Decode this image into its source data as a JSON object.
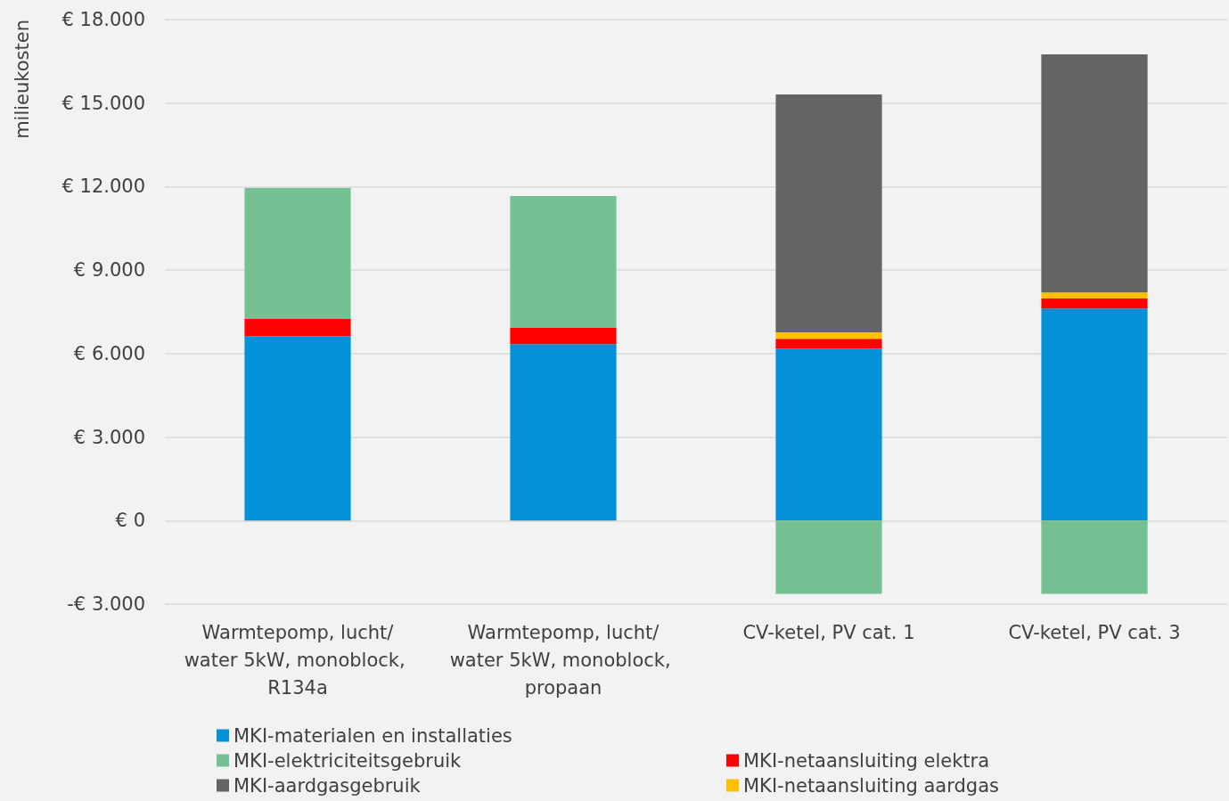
{
  "chart_data": {
    "type": "bar",
    "stacked": true,
    "ylabel": "milieukosten",
    "categories": [
      "Warmtepomp, lucht/water 5kW, monoblock, R134a",
      "Warmtepomp, lucht/water 5kW, monoblock, propaan",
      "CV-ketel, PV cat. 1",
      "CV-ketel, PV cat. 3"
    ],
    "series": [
      {
        "name": "MKI-materialen en installaties",
        "color": "#0391d7",
        "values": [
          6630,
          6340,
          6180,
          7620
        ]
      },
      {
        "name": "MKI-netaansluiting elektra",
        "color": "#ff0000",
        "values": [
          610,
          580,
          350,
          360
        ]
      },
      {
        "name": "MKI-elektriciteitsgebruik",
        "color": "#75c193",
        "values": [
          4710,
          4740,
          -2630,
          -2630
        ]
      },
      {
        "name": "MKI-netaansluiting aardgas",
        "color": "#ffc000",
        "values": [
          null,
          null,
          230,
          220
        ]
      },
      {
        "name": "MKI-aardgasgebruik",
        "color": "#646464",
        "values": [
          null,
          null,
          8550,
          8550
        ]
      }
    ],
    "ylim": [
      -3000,
      18000
    ],
    "yticks": [
      {
        "value": -3000,
        "label": "-€ 3.000"
      },
      {
        "value": 0,
        "label": "€ 0"
      },
      {
        "value": 3000,
        "label": "€ 3.000"
      },
      {
        "value": 6000,
        "label": "€ 6.000"
      },
      {
        "value": 9000,
        "label": "€ 9.000"
      },
      {
        "value": 12000,
        "label": "€ 12.000"
      },
      {
        "value": 15000,
        "label": "€ 15.000"
      },
      {
        "value": 18000,
        "label": "€ 18.000"
      }
    ],
    "grid": "y",
    "legend": "bottom"
  }
}
